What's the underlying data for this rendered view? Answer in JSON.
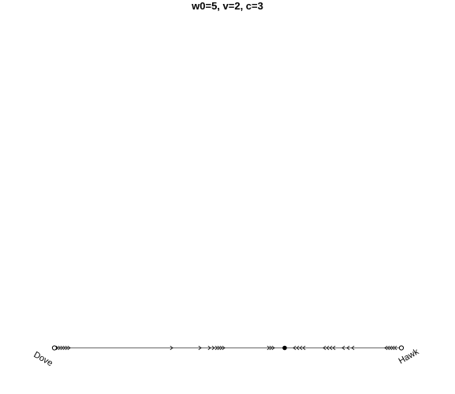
{
  "title": "w0=5, v=2, c=3",
  "vertices": {
    "left": "Dove",
    "right": "Hawk"
  },
  "colors": {
    "line": "#666666",
    "mark": "#000000",
    "background": "#ffffff"
  },
  "flow": {
    "type": "1d-simplex-dynamics",
    "rest_point_fraction": 0.669,
    "rest_point_stable": true,
    "endpoints_stable": false
  }
}
